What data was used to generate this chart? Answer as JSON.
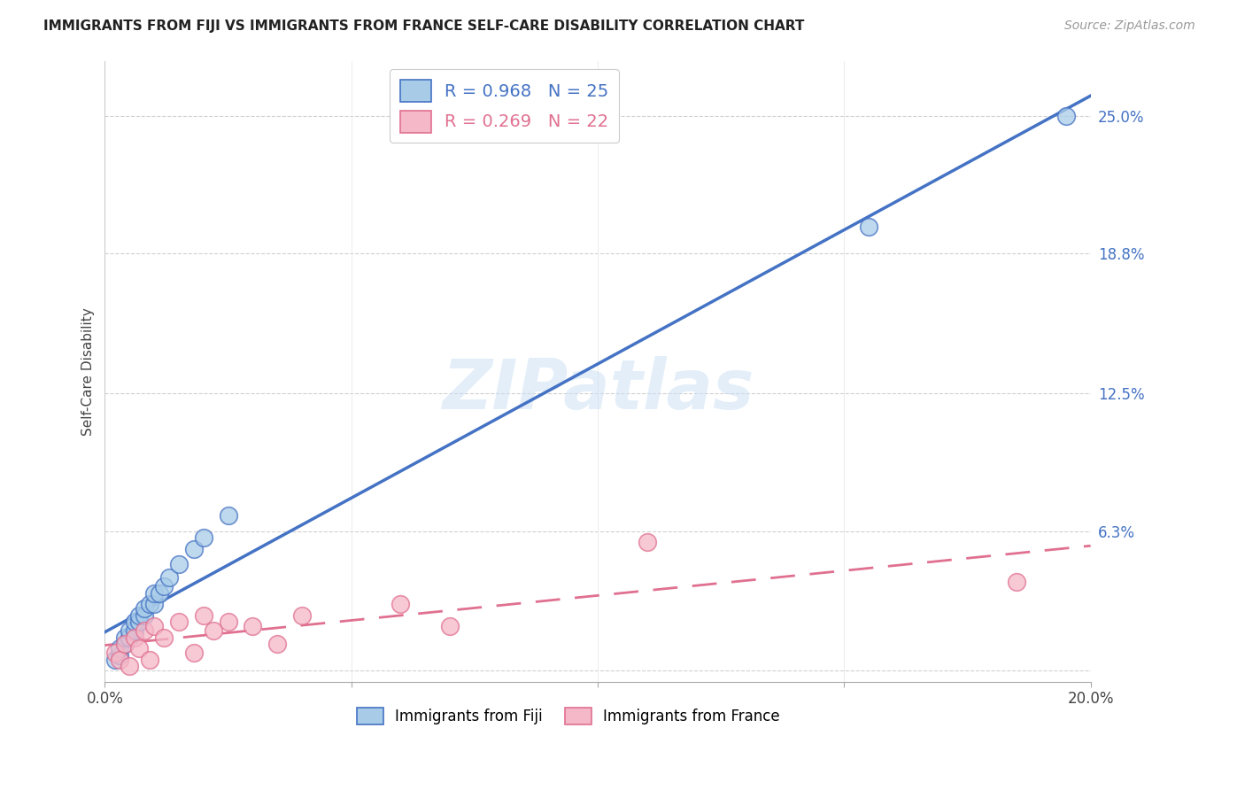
{
  "title": "IMMIGRANTS FROM FIJI VS IMMIGRANTS FROM FRANCE SELF-CARE DISABILITY CORRELATION CHART",
  "source": "Source: ZipAtlas.com",
  "ylabel": "Self-Care Disability",
  "xlim": [
    0.0,
    0.2
  ],
  "ylim": [
    -0.005,
    0.275
  ],
  "ytick_vals": [
    0.0,
    0.063,
    0.125,
    0.188,
    0.25
  ],
  "ytick_labels": [
    "",
    "6.3%",
    "12.5%",
    "18.8%",
    "25.0%"
  ],
  "xtick_vals": [
    0.0,
    0.05,
    0.1,
    0.15,
    0.2
  ],
  "xtick_labels": [
    "0.0%",
    "",
    "",
    "",
    "20.0%"
  ],
  "fiji_R": 0.968,
  "fiji_N": 25,
  "france_R": 0.269,
  "france_N": 22,
  "fiji_scatter_color": "#a8cce8",
  "fiji_line_color": "#4472c4",
  "france_scatter_color": "#f5b8c8",
  "france_line_color": "#e07090",
  "grid_color": "#d0d0d0",
  "background_color": "#ffffff",
  "watermark": "ZIPatlas",
  "fiji_x": [
    0.002,
    0.003,
    0.003,
    0.004,
    0.004,
    0.005,
    0.005,
    0.006,
    0.006,
    0.007,
    0.007,
    0.008,
    0.008,
    0.009,
    0.01,
    0.01,
    0.011,
    0.012,
    0.013,
    0.015,
    0.018,
    0.02,
    0.025,
    0.155,
    0.195
  ],
  "fiji_y": [
    0.005,
    0.007,
    0.01,
    0.012,
    0.015,
    0.015,
    0.018,
    0.018,
    0.022,
    0.022,
    0.025,
    0.025,
    0.028,
    0.03,
    0.03,
    0.035,
    0.035,
    0.038,
    0.042,
    0.048,
    0.055,
    0.06,
    0.07,
    0.2,
    0.25
  ],
  "france_x": [
    0.002,
    0.003,
    0.004,
    0.005,
    0.006,
    0.007,
    0.008,
    0.009,
    0.01,
    0.012,
    0.015,
    0.018,
    0.02,
    0.022,
    0.025,
    0.03,
    0.035,
    0.04,
    0.06,
    0.07,
    0.11,
    0.185
  ],
  "france_y": [
    0.008,
    0.005,
    0.012,
    0.002,
    0.015,
    0.01,
    0.018,
    0.005,
    0.02,
    0.015,
    0.022,
    0.008,
    0.025,
    0.018,
    0.022,
    0.02,
    0.012,
    0.025,
    0.03,
    0.02,
    0.058,
    0.04
  ]
}
